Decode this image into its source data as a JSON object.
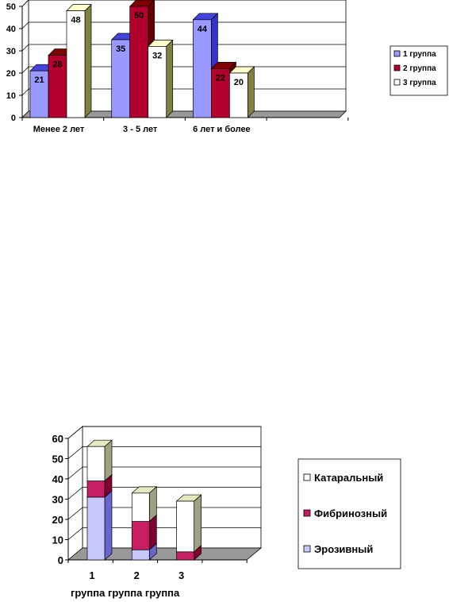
{
  "chart_data": [
    {
      "type": "bar",
      "title": "",
      "xlabel": "",
      "ylabel": "",
      "ylim": [
        0,
        50
      ],
      "yticks": [
        0,
        10,
        20,
        30,
        40,
        50
      ],
      "grid": true,
      "three_d": true,
      "legend_position": "right",
      "categories": [
        "Менее 2 лет",
        "3 - 5 лет",
        "6 лет и более"
      ],
      "series": [
        {
          "name": "1 группа",
          "values": [
            21,
            35,
            44
          ],
          "color": "#9999ff"
        },
        {
          "name": "2 группа",
          "values": [
            28,
            50,
            22
          ],
          "color": "#b4002d"
        },
        {
          "name": "3 группа",
          "values": [
            48,
            32,
            20
          ],
          "color": "#ffffff"
        }
      ]
    },
    {
      "type": "bar",
      "stacked": true,
      "title": "",
      "xlabel": "",
      "ylabel": "",
      "ylim": [
        0,
        60
      ],
      "yticks": [
        0,
        10,
        20,
        30,
        40,
        50,
        60
      ],
      "grid": true,
      "three_d": true,
      "legend_position": "right",
      "categories": [
        "1",
        "2",
        "3"
      ],
      "category_caption": "группа группа группа",
      "series": [
        {
          "name": "Эрозивный",
          "values": [
            31,
            5,
            0
          ],
          "color": "#c8c8ff"
        },
        {
          "name": "Фибринозный",
          "values": [
            8,
            14,
            4
          ],
          "color": "#c81e64"
        },
        {
          "name": "Катаральный",
          "values": [
            17,
            14,
            25
          ],
          "color": "#ffffff"
        }
      ]
    }
  ]
}
